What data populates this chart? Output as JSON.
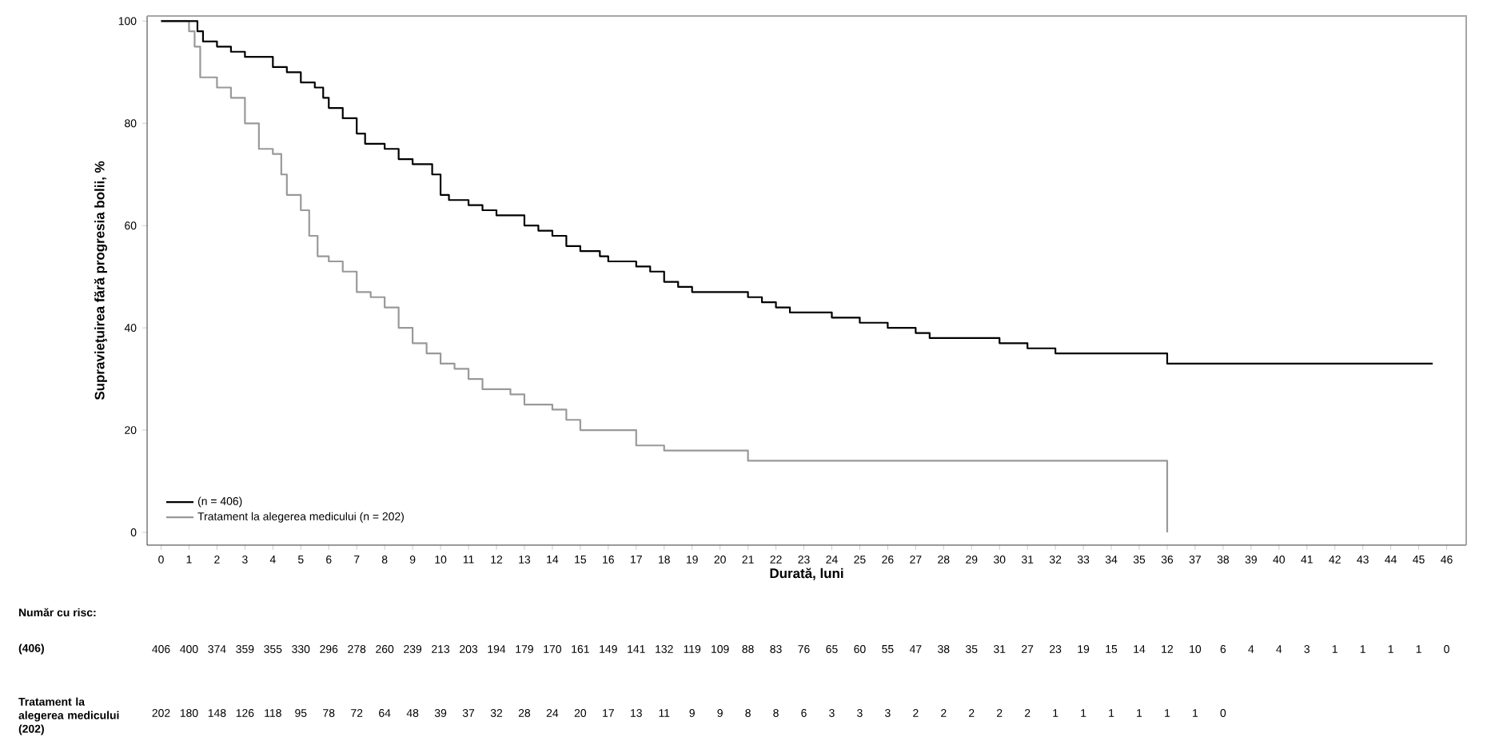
{
  "chart_data": {
    "type": "step",
    "xlabel": "Durată, luni",
    "ylabel": "Supravieţuirea fără progresia bolii, %",
    "xlim": [
      -0.5,
      46.7
    ],
    "ylim": [
      -2.5,
      101
    ],
    "xticks": [
      0,
      1,
      2,
      3,
      4,
      5,
      6,
      7,
      8,
      9,
      10,
      11,
      12,
      13,
      14,
      15,
      16,
      17,
      18,
      19,
      20,
      21,
      22,
      23,
      24,
      25,
      26,
      27,
      28,
      29,
      30,
      31,
      32,
      33,
      34,
      35,
      36,
      37,
      38,
      39,
      40,
      41,
      42,
      43,
      44,
      45,
      46
    ],
    "yticks": [
      0,
      20,
      40,
      60,
      80,
      100
    ],
    "legend": "bottom left",
    "series": [
      {
        "name": "(n = 406)",
        "color": "#000000",
        "x": [
          0,
          1.2,
          1.3,
          1.5,
          2,
          2.5,
          3,
          3.5,
          4,
          4.5,
          5,
          5.5,
          5.8,
          6,
          6.5,
          7,
          7.3,
          8,
          8.5,
          9,
          9.7,
          10,
          10.3,
          11,
          11.5,
          12,
          12.7,
          13,
          13.5,
          14,
          14.5,
          15,
          15.7,
          16,
          17,
          17.5,
          18,
          18.5,
          19,
          20,
          21,
          21.5,
          22,
          22.5,
          23,
          24,
          25,
          26,
          27,
          27.5,
          29,
          30,
          31,
          32,
          34,
          36,
          45.5
        ],
        "values": [
          100,
          100,
          98,
          96,
          95,
          94,
          93,
          93,
          91,
          90,
          88,
          87,
          85,
          83,
          81,
          78,
          76,
          75,
          73,
          72,
          70,
          66,
          65,
          64,
          63,
          62,
          62,
          60,
          59,
          58,
          56,
          55,
          54,
          53,
          52,
          51,
          49,
          48,
          47,
          47,
          46,
          45,
          44,
          43,
          43,
          42,
          41,
          40,
          39,
          38,
          38,
          37,
          36,
          35,
          35,
          33,
          33
        ]
      },
      {
        "name": "Tratament la alegerea medicului (n = 202)",
        "color": "#999999",
        "x": [
          0,
          1,
          1.2,
          1.4,
          2,
          2.5,
          3,
          3.5,
          4,
          4.3,
          4.5,
          5,
          5.3,
          5.6,
          6,
          6.5,
          7,
          7.5,
          8,
          8.5,
          9,
          9.5,
          10,
          10.5,
          11,
          11.5,
          12.5,
          13,
          14,
          14.5,
          15,
          16.5,
          17,
          18,
          21,
          36,
          36
        ],
        "values": [
          100,
          98,
          95,
          89,
          87,
          85,
          80,
          75,
          74,
          70,
          66,
          63,
          58,
          54,
          53,
          51,
          47,
          46,
          44,
          40,
          37,
          35,
          33,
          32,
          30,
          28,
          27,
          25,
          24,
          22,
          20,
          20,
          17,
          16,
          14,
          14,
          0
        ]
      }
    ],
    "annotations": [
      "Număr cu risc:",
      "(406)",
      "Tratament la alegerea medicului (202)",
      "406",
      "400",
      "374",
      "359",
      "355",
      "330",
      "296",
      "278",
      "260",
      "239",
      "213",
      "203",
      "194",
      "179",
      "170",
      "161",
      "149",
      "141",
      "132",
      "119",
      "109",
      "88",
      "83",
      "76",
      "65",
      "60",
      "55",
      "47",
      "38",
      "35",
      "31",
      "27",
      "23",
      "19",
      "15",
      "14",
      "12",
      "10",
      "6",
      "4",
      "4",
      "3",
      "1",
      "1",
      "1",
      "1",
      "0",
      "202",
      "180",
      "148",
      "126",
      "118",
      "95",
      "78",
      "72",
      "64",
      "48",
      "39",
      "37",
      "32",
      "28",
      "24",
      "20",
      "17",
      "13",
      "11",
      "9",
      "9",
      "8",
      "8",
      "6",
      "3",
      "3",
      "3",
      "2",
      "2",
      "2",
      "2",
      "2",
      "1",
      "1",
      "1",
      "1",
      "1",
      "1",
      "0"
    ]
  }
}
